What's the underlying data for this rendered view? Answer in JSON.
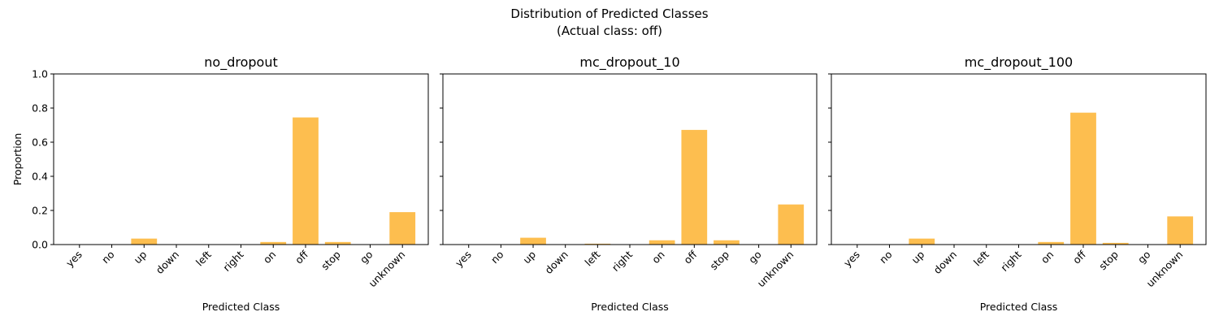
{
  "figure": {
    "suptitle_line1": "Distribution of Predicted Classes",
    "suptitle_line2": "(Actual class: off)"
  },
  "colors": {
    "bar": "#FDBE4F"
  },
  "chart_data": [
    {
      "type": "bar",
      "title": "no_dropout",
      "xlabel": "Predicted Class",
      "ylabel": "Proportion",
      "ylim": [
        0,
        1.0
      ],
      "yticks": [
        "0.0",
        "0.2",
        "0.4",
        "0.6",
        "0.8",
        "1.0"
      ],
      "show_yticklabels": true,
      "categories": [
        "yes",
        "no",
        "up",
        "down",
        "left",
        "right",
        "on",
        "off",
        "stop",
        "go",
        "unknown"
      ],
      "values": [
        0,
        0,
        0.035,
        0,
        0,
        0,
        0.015,
        0.745,
        0.015,
        0,
        0.19
      ],
      "grid": false
    },
    {
      "type": "bar",
      "title": "mc_dropout_10",
      "xlabel": "Predicted Class",
      "ylabel": "",
      "ylim": [
        0,
        1.0
      ],
      "yticks": [
        "0.0",
        "0.2",
        "0.4",
        "0.6",
        "0.8",
        "1.0"
      ],
      "show_yticklabels": false,
      "categories": [
        "yes",
        "no",
        "up",
        "down",
        "left",
        "right",
        "on",
        "off",
        "stop",
        "go",
        "unknown"
      ],
      "values": [
        0,
        0,
        0.04,
        0,
        0.005,
        0,
        0.025,
        0.672,
        0.025,
        0,
        0.235
      ],
      "grid": false
    },
    {
      "type": "bar",
      "title": "mc_dropout_100",
      "xlabel": "Predicted Class",
      "ylabel": "",
      "ylim": [
        0,
        1.0
      ],
      "yticks": [
        "0.0",
        "0.2",
        "0.4",
        "0.6",
        "0.8",
        "1.0"
      ],
      "show_yticklabels": false,
      "categories": [
        "yes",
        "no",
        "up",
        "down",
        "left",
        "right",
        "on",
        "off",
        "stop",
        "go",
        "unknown"
      ],
      "values": [
        0,
        0,
        0.035,
        0,
        0,
        0,
        0.015,
        0.773,
        0.01,
        0,
        0.165
      ],
      "grid": false
    }
  ]
}
